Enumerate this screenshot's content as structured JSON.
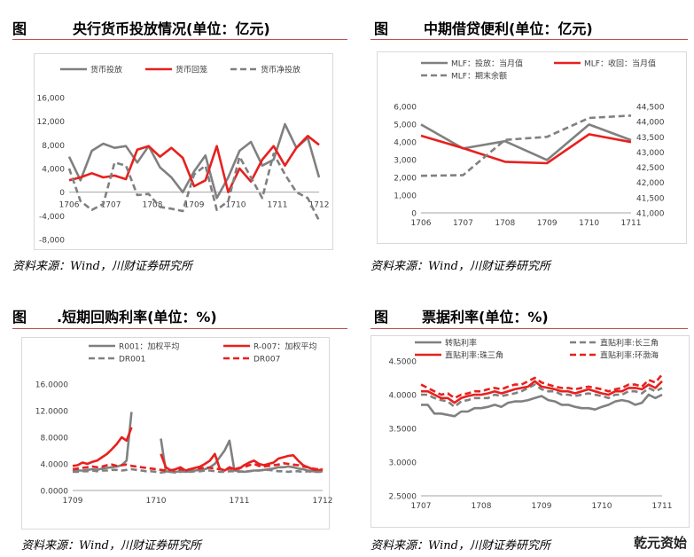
{
  "panels": [
    {
      "label": "图",
      "title": "央行货币投放情况(单位：亿元)",
      "source": "资料来源：Wind，川财证券研究所"
    },
    {
      "label": "图",
      "title": "中期借贷便利(单位：亿元)",
      "source": "资料来源：Wind，川财证券研究所"
    },
    {
      "label": "图",
      "title": ".短期回购利率(单位：%)",
      "source": "资料来源：Wind，川财证券研究所"
    },
    {
      "label": "图",
      "title": "票据利率(单位：%)",
      "source": "资料来源：Wind，川财证券研究所"
    }
  ],
  "watermark": "乾元资始",
  "colors": {
    "gray": "#808080",
    "red": "#e8201e",
    "rule": "#c0504d",
    "grid": "#d9d9d9"
  },
  "chart_data": [
    {
      "type": "line",
      "x_ticks": [
        "1706",
        "1707",
        "1708",
        "1709",
        "1710",
        "1711",
        "1712"
      ],
      "ylim": [
        -8000,
        16000
      ],
      "y_ticks": [
        "16,000",
        "12,000",
        "8,000",
        "4,000",
        "0",
        "-4,000",
        "-8,000"
      ],
      "legend_position": "top",
      "series": [
        {
          "name": "货币投放",
          "color": "#808080",
          "dash": false,
          "values": [
            6000,
            2000,
            7000,
            8200,
            7500,
            7800,
            5000,
            7800,
            4200,
            2500,
            0,
            3500,
            6200,
            -1000,
            2500,
            7000,
            8500,
            4500,
            5500,
            11500,
            7500,
            9200,
            2500
          ]
        },
        {
          "name": "货币回笼",
          "color": "#e8201e",
          "dash": false,
          "values": [
            2000,
            2500,
            3200,
            2500,
            2800,
            2200,
            7200,
            7800,
            6000,
            7500,
            5800,
            1000,
            2000,
            7800,
            0,
            4000,
            1800,
            5500,
            7800,
            4500,
            7500,
            9500,
            8000
          ]
        },
        {
          "name": "货币净投放",
          "color": "#808080",
          "dash": true,
          "values": [
            4000,
            -1500,
            -3000,
            -2000,
            5000,
            4500,
            -500,
            -300,
            -2500,
            -2800,
            -3200,
            3000,
            4500,
            -3000,
            -1500,
            6000,
            2500,
            -1000,
            6500,
            3000,
            0,
            -1000,
            -4800
          ]
        }
      ]
    },
    {
      "type": "line",
      "x_ticks": [
        "1706",
        "1707",
        "1708",
        "1709",
        "1710",
        "1711"
      ],
      "ylim": [
        0,
        6000
      ],
      "y_ticks": [
        "6,000",
        "5,000",
        "4,000",
        "3,000",
        "2,000",
        "1,000",
        "0"
      ],
      "y2lim": [
        41000,
        44500
      ],
      "y2_ticks": [
        "44,500",
        "44,000",
        "43,500",
        "43,000",
        "42,500",
        "42,000",
        "41,500",
        "41,000"
      ],
      "legend_position": "top",
      "series": [
        {
          "name": "MLF：投放：当月值",
          "color": "#808080",
          "dash": false,
          "axis": "left",
          "values": [
            4980,
            3630,
            4040,
            2980,
            4980,
            4100
          ]
        },
        {
          "name": "MLF：收回：当月值",
          "color": "#e8201e",
          "dash": false,
          "axis": "left",
          "values": [
            4350,
            3650,
            2880,
            2800,
            4430,
            3990
          ]
        },
        {
          "name": "MLF：期末余额",
          "color": "#808080",
          "dash": true,
          "axis": "right",
          "values": [
            42220,
            42240,
            43400,
            43500,
            44120,
            44200
          ]
        }
      ]
    },
    {
      "type": "line",
      "x_ticks": [
        "1709",
        "1710",
        "1711",
        "1712"
      ],
      "ylim": [
        0,
        16
      ],
      "y_ticks": [
        "16.0000",
        "12.0000",
        "8.0000",
        "4.0000",
        "0.0000"
      ],
      "legend_position": "top",
      "series": [
        {
          "name": "R001：加权平均",
          "color": "#808080",
          "dash": false,
          "values": [
            2.9,
            3.0,
            3.0,
            3.1,
            3.2,
            3.1,
            3.3,
            3.4,
            3.5,
            3.6,
            3.8,
            4.5,
            11.8,
            null,
            null,
            null,
            null,
            null,
            7.8,
            2.9,
            2.8,
            2.8,
            2.9,
            2.8,
            2.9,
            3.0,
            3.1,
            3.2,
            3.5,
            4.0,
            5.0,
            6.0,
            7.5,
            3.0,
            2.9,
            2.8,
            2.9,
            3.0,
            3.0,
            3.1,
            3.2,
            3.3,
            3.5,
            3.5,
            3.6,
            3.5,
            3.3,
            3.2,
            3.0,
            2.9,
            2.8,
            2.9
          ]
        },
        {
          "name": "R-007：加权平均",
          "color": "#e8201e",
          "dash": false,
          "values": [
            3.7,
            3.8,
            4.2,
            4.0,
            4.3,
            4.5,
            5.0,
            5.5,
            6.2,
            7.0,
            8.0,
            7.5,
            9.5,
            null,
            null,
            null,
            null,
            null,
            5.5,
            3.5,
            3.0,
            3.2,
            3.5,
            3.0,
            3.2,
            3.4,
            3.6,
            4.0,
            4.5,
            5.5,
            3.3,
            3.0,
            3.5,
            3.2,
            3.3,
            3.8,
            4.2,
            4.5,
            4.0,
            3.8,
            4.0,
            4.2,
            4.8,
            5.0,
            5.2,
            5.3,
            4.5,
            3.8,
            3.5,
            3.2,
            3.0,
            3.2
          ]
        },
        {
          "name": "DR001",
          "color": "#808080",
          "dash": true,
          "values": [
            2.8,
            2.8,
            2.9,
            2.9,
            3.0,
            2.9,
            3.0,
            3.0,
            3.1,
            3.1,
            3.0,
            3.1,
            3.2,
            3.1,
            3.0,
            2.9,
            2.9,
            2.8,
            2.7,
            2.8,
            2.8,
            2.7,
            2.8,
            2.9,
            2.8,
            2.9,
            2.9,
            3.0,
            3.0,
            2.9,
            2.8,
            2.8,
            2.9,
            2.9,
            2.8,
            2.9,
            2.9,
            3.0,
            3.0,
            3.1,
            3.1,
            3.0,
            2.9,
            2.9,
            2.8,
            2.9,
            2.9,
            2.8,
            2.9,
            2.8,
            2.8,
            2.8
          ]
        },
        {
          "name": "DR007",
          "color": "#e8201e",
          "dash": true,
          "values": [
            3.2,
            3.3,
            3.4,
            3.5,
            3.6,
            3.5,
            3.6,
            3.8,
            3.9,
            3.7,
            3.8,
            3.9,
            3.7,
            3.6,
            3.5,
            3.4,
            3.3,
            3.2,
            3.1,
            3.0,
            3.1,
            3.0,
            3.2,
            3.1,
            3.2,
            3.4,
            3.3,
            3.5,
            3.4,
            3.3,
            3.2,
            3.1,
            3.3,
            3.2,
            3.4,
            3.5,
            3.8,
            4.0,
            3.7,
            3.6,
            3.7,
            3.8,
            3.9,
            4.1,
            4.0,
            3.9,
            3.8,
            3.6,
            3.5,
            3.3,
            3.2,
            3.1
          ]
        }
      ]
    },
    {
      "type": "line",
      "x_ticks": [
        "1707",
        "1708",
        "1709",
        "1710",
        "1711"
      ],
      "ylim": [
        2.5,
        4.5
      ],
      "y_ticks": [
        "4.5000",
        "4.0000",
        "3.5000",
        "3.0000",
        "2.5000"
      ],
      "legend_position": "top",
      "series": [
        {
          "name": "转贴利率",
          "color": "#808080",
          "dash": false,
          "values": [
            3.85,
            3.85,
            3.72,
            3.72,
            3.7,
            3.68,
            3.75,
            3.75,
            3.8,
            3.8,
            3.82,
            3.85,
            3.82,
            3.88,
            3.9,
            3.9,
            3.92,
            3.95,
            3.98,
            3.92,
            3.9,
            3.85,
            3.85,
            3.82,
            3.8,
            3.8,
            3.78,
            3.82,
            3.85,
            3.9,
            3.92,
            3.9,
            3.85,
            3.88,
            4.0,
            3.95,
            4.0
          ]
        },
        {
          "name": "直贴利率:长三角",
          "color": "#808080",
          "dash": true,
          "values": [
            4.0,
            4.0,
            3.95,
            3.92,
            3.9,
            3.82,
            3.9,
            3.92,
            3.95,
            3.95,
            3.95,
            4.0,
            3.98,
            4.0,
            4.02,
            4.05,
            4.1,
            4.15,
            4.08,
            4.05,
            4.05,
            4.0,
            4.0,
            3.98,
            4.0,
            4.02,
            4.0,
            3.98,
            3.95,
            4.0,
            4.0,
            4.05,
            4.05,
            4.02,
            4.1,
            4.05,
            4.1
          ]
        },
        {
          "name": "直贴利率:珠三角",
          "color": "#e8201e",
          "dash": false,
          "values": [
            4.05,
            4.05,
            4.0,
            3.95,
            3.95,
            3.88,
            3.95,
            3.98,
            4.0,
            4.0,
            4.02,
            4.05,
            4.02,
            4.05,
            4.08,
            4.1,
            4.12,
            4.2,
            4.12,
            4.1,
            4.08,
            4.05,
            4.05,
            4.02,
            4.05,
            4.08,
            4.05,
            4.02,
            4.0,
            4.05,
            4.05,
            4.1,
            4.1,
            4.08,
            4.15,
            4.1,
            4.2
          ]
        },
        {
          "name": "直贴利率:环渤海",
          "color": "#e8201e",
          "dash": true,
          "values": [
            4.15,
            4.1,
            4.05,
            4.0,
            4.02,
            3.95,
            4.0,
            4.02,
            4.05,
            4.05,
            4.08,
            4.1,
            4.08,
            4.12,
            4.15,
            4.15,
            4.2,
            4.25,
            4.18,
            4.15,
            4.12,
            4.1,
            4.1,
            4.08,
            4.1,
            4.12,
            4.1,
            4.08,
            4.05,
            4.08,
            4.1,
            4.15,
            4.15,
            4.12,
            4.22,
            4.18,
            4.3
          ]
        }
      ]
    }
  ]
}
